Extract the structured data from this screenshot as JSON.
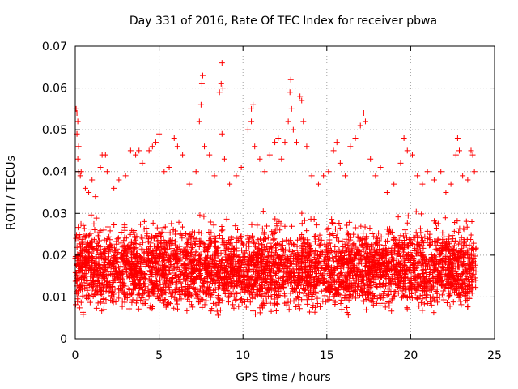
{
  "chart_data": {
    "type": "scatter",
    "title": "Day 331 of 2016, Rate Of TEC Index for receiver pbwa",
    "xlabel": "GPS time / hours",
    "ylabel": "ROTI / TECUs",
    "xlim": [
      0,
      25
    ],
    "ylim": [
      0,
      0.07
    ],
    "xticks": [
      0,
      5,
      10,
      15,
      20,
      25
    ],
    "yticks": [
      0,
      0.01,
      0.02,
      0.03,
      0.04,
      0.05,
      0.06,
      0.07
    ],
    "xtick_labels": [
      "0",
      "5",
      "10",
      "15",
      "20",
      "25"
    ],
    "ytick_labels": [
      "0",
      "0.01",
      "0.02",
      "0.03",
      "0.04",
      "0.05",
      "0.06",
      "0.07"
    ],
    "grid": true,
    "marker": "plus",
    "color": "#ff0000",
    "x_extent": [
      0,
      23.9
    ],
    "bulk_range": [
      0.005,
      0.03
    ],
    "points": [
      [
        0.05,
        0.055
      ],
      [
        0.1,
        0.054
      ],
      [
        0.15,
        0.052
      ],
      [
        0.1,
        0.049
      ],
      [
        0.2,
        0.046
      ],
      [
        0.15,
        0.043
      ],
      [
        0.2,
        0.04
      ],
      [
        0.3,
        0.039
      ],
      [
        0.35,
        0.04
      ],
      [
        0.6,
        0.036
      ],
      [
        0.8,
        0.035
      ],
      [
        1.0,
        0.038
      ],
      [
        1.2,
        0.034
      ],
      [
        1.5,
        0.041
      ],
      [
        1.6,
        0.044
      ],
      [
        1.8,
        0.044
      ],
      [
        1.9,
        0.04
      ],
      [
        2.3,
        0.036
      ],
      [
        2.6,
        0.038
      ],
      [
        3.0,
        0.039
      ],
      [
        3.3,
        0.045
      ],
      [
        3.6,
        0.044
      ],
      [
        3.8,
        0.045
      ],
      [
        4.0,
        0.042
      ],
      [
        4.4,
        0.045
      ],
      [
        4.6,
        0.046
      ],
      [
        4.8,
        0.047
      ],
      [
        5.0,
        0.049
      ],
      [
        5.3,
        0.04
      ],
      [
        5.6,
        0.041
      ],
      [
        5.9,
        0.048
      ],
      [
        6.1,
        0.046
      ],
      [
        6.4,
        0.044
      ],
      [
        6.8,
        0.037
      ],
      [
        7.2,
        0.04
      ],
      [
        7.4,
        0.052
      ],
      [
        7.5,
        0.056
      ],
      [
        7.6,
        0.063
      ],
      [
        7.55,
        0.061
      ],
      [
        7.7,
        0.046
      ],
      [
        8.0,
        0.044
      ],
      [
        8.3,
        0.039
      ],
      [
        8.6,
        0.059
      ],
      [
        8.7,
        0.061
      ],
      [
        8.75,
        0.066
      ],
      [
        8.8,
        0.06
      ],
      [
        8.75,
        0.049
      ],
      [
        8.9,
        0.043
      ],
      [
        9.2,
        0.037
      ],
      [
        9.6,
        0.039
      ],
      [
        9.9,
        0.041
      ],
      [
        10.3,
        0.05
      ],
      [
        10.5,
        0.055
      ],
      [
        10.6,
        0.056
      ],
      [
        10.5,
        0.052
      ],
      [
        10.7,
        0.046
      ],
      [
        11.0,
        0.043
      ],
      [
        11.3,
        0.04
      ],
      [
        11.6,
        0.044
      ],
      [
        11.9,
        0.047
      ],
      [
        12.1,
        0.048
      ],
      [
        12.3,
        0.043
      ],
      [
        12.5,
        0.047
      ],
      [
        12.7,
        0.052
      ],
      [
        12.8,
        0.059
      ],
      [
        12.85,
        0.062
      ],
      [
        12.9,
        0.055
      ],
      [
        13.0,
        0.05
      ],
      [
        13.2,
        0.047
      ],
      [
        13.4,
        0.058
      ],
      [
        13.5,
        0.057
      ],
      [
        13.6,
        0.052
      ],
      [
        13.8,
        0.046
      ],
      [
        14.1,
        0.039
      ],
      [
        14.5,
        0.037
      ],
      [
        14.8,
        0.039
      ],
      [
        15.1,
        0.04
      ],
      [
        15.4,
        0.045
      ],
      [
        15.6,
        0.047
      ],
      [
        15.8,
        0.042
      ],
      [
        16.1,
        0.039
      ],
      [
        16.4,
        0.046
      ],
      [
        16.7,
        0.048
      ],
      [
        17.0,
        0.051
      ],
      [
        17.2,
        0.054
      ],
      [
        17.3,
        0.052
      ],
      [
        17.6,
        0.043
      ],
      [
        17.9,
        0.039
      ],
      [
        18.2,
        0.041
      ],
      [
        18.6,
        0.035
      ],
      [
        19.0,
        0.037
      ],
      [
        19.4,
        0.042
      ],
      [
        19.6,
        0.048
      ],
      [
        19.8,
        0.045
      ],
      [
        20.1,
        0.044
      ],
      [
        20.4,
        0.039
      ],
      [
        20.7,
        0.037
      ],
      [
        21.0,
        0.04
      ],
      [
        21.4,
        0.038
      ],
      [
        21.8,
        0.04
      ],
      [
        22.1,
        0.035
      ],
      [
        22.4,
        0.037
      ],
      [
        22.7,
        0.044
      ],
      [
        22.8,
        0.048
      ],
      [
        22.9,
        0.045
      ],
      [
        23.1,
        0.039
      ],
      [
        23.4,
        0.038
      ],
      [
        23.6,
        0.045
      ],
      [
        23.7,
        0.044
      ],
      [
        23.8,
        0.04
      ]
    ]
  }
}
